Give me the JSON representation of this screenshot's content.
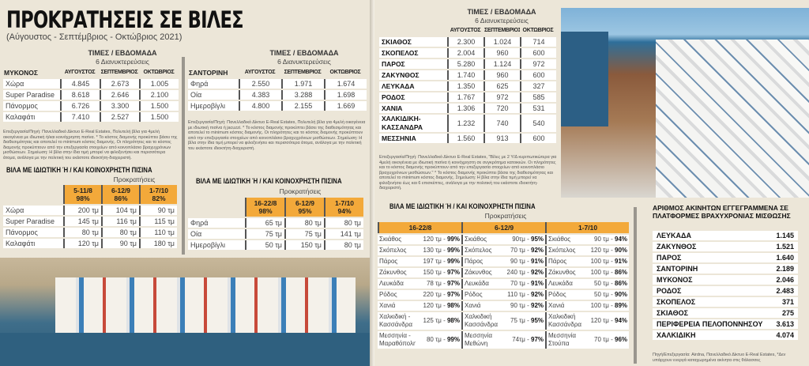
{
  "header": {
    "title": "ΠΡΟΚΡΑΤΗΣΕΙΣ ΣΕ ΒΙΛΕΣ",
    "subtitle": "(Αύγουστος - Σεπτέμβριος - Οκτώβριος 2021)"
  },
  "labels": {
    "prices_week": "ΤΙΜΕΣ / ΕΒΔΟΜΑΔΑ",
    "nights": "6 Διανυκτερεύσεις",
    "aug": "ΑΥΓΟΥΣΤΟΣ",
    "sep": "ΣΕΠΤΕΜΒΡΙΟΣ",
    "oct": "ΟΚΤΩΒΡΙΟΣ",
    "pool_title": "ΒΙΛΑ ΜΕ ΙΔΙΩΤΙΚΗ Ή / ΚΑΙ ΚΟΙΝΟΧΡΗΣΤΗ ΠΙΣΙΝΑ",
    "bookings": "Προκρατήσεις"
  },
  "mykonos": {
    "name": "ΜΥΚΟΝΟΣ",
    "rows": [
      [
        "Χώρα",
        "4.845",
        "2.673",
        "1.005"
      ],
      [
        "Super Paradise",
        "8.618",
        "2.646",
        "2.100"
      ],
      [
        "Πάνορμος",
        "6.726",
        "3.300",
        "1.500"
      ],
      [
        "Καλαφάτι",
        "7.410",
        "2.527",
        "1.500"
      ]
    ],
    "note": "Επεξεργασία/Πηγή: Πανελλαδικό Δίκτυο Ε-Real Estates, Πολυτελή βίλα για 4μελή οικογένεια με ιδιωτική ή/και κοινόχρηστη πισίνα. * Το κόστος διαμονής προκύπτει βάσει της διαθεσιμότητας και αποτελεί το minimum κόστος διαμονής. Οι πληρότητες και το κόστος διαμονής προκύπτουν από την επεξεργασία στοιχείων από κοινοπλάσιο βραχυχρόνιων μισθώσεων. Σημείωση: Η βίλα στην ίδια τιμή μπορεί να φιλοξενήσει και περισσότερα άτομα, ανάλογα με την πολιτική του εκάστοτε ιδιοκτήτη-διαχειριστή.",
    "pool": {
      "periods": [
        {
          "dates": "5-11/8",
          "pct": "98%"
        },
        {
          "dates": "6-12/9",
          "pct": "86%"
        },
        {
          "dates": "1-7/10",
          "pct": "82%"
        }
      ],
      "rows": [
        [
          "Χώρα",
          "200 τμ",
          "104 τμ",
          "90 τμ"
        ],
        [
          "Super Paradise",
          "145 τμ",
          "116 τμ",
          "115 τμ"
        ],
        [
          "Πάνορμος",
          "80 τμ",
          "80 τμ",
          "110 τμ"
        ],
        [
          "Καλαφάτι",
          "120 τμ",
          "90 τμ",
          "180 τμ"
        ]
      ]
    }
  },
  "santorini": {
    "name": "ΣΑΝΤΟΡΙΝΗ",
    "rows": [
      [
        "Φηρά",
        "2.550",
        "1.971",
        "1.674"
      ],
      [
        "Οία",
        "4.383",
        "3.288",
        "1.698"
      ],
      [
        "Ημεροβίγλι",
        "4.800",
        "2.155",
        "1.669"
      ]
    ],
    "note": "Επεξεργασία/Πηγή: Πανελλαδικό Δίκτυο Ε-Real Estates, Πολυτελή βίλα για 4μελή οικογένεια με ιδιωτική πισίνα ή jacuzzi. * Το κόστος διαμονής προκύπτει βάσει της διαθεσιμότητας και αποτελεί το minimum κόστος διαμονής. Οι πληρότητες και το κόστος διαμονής προκύπτουν από την επεξεργασία στοιχείων από κοινοπλάσιο βραχυχρόνιων μισθώσεων. Σημείωση: Η βίλα στην ίδια τιμή μπορεί να φιλοξενήσει και περισσότερα άτομα, ανάλογα με την πολιτική του εκάστοτε ιδιοκτήτη-διαχειριστή.",
    "pool": {
      "periods": [
        {
          "dates": "16-22/8",
          "pct": "98%"
        },
        {
          "dates": "6-12/9",
          "pct": "95%"
        },
        {
          "dates": "1-7/10",
          "pct": "94%"
        }
      ],
      "rows": [
        [
          "Φηρά",
          "65 τμ",
          "80 τμ",
          "80 τμ"
        ],
        [
          "Οία",
          "75 τμ",
          "75 τμ",
          "141 τμ"
        ],
        [
          "Ημεροβίγλι",
          "50 τμ",
          "150 τμ",
          "80 τμ"
        ]
      ]
    }
  },
  "regions": {
    "rows": [
      [
        "ΣΚΙΑΘΟΣ",
        "2.300",
        "1.024",
        "714"
      ],
      [
        "ΣΚΟΠΕΛΟΣ",
        "2.004",
        "960",
        "600"
      ],
      [
        "ΠΑΡΟΣ",
        "5.280",
        "1.124",
        "972"
      ],
      [
        "ΖΑΚΥΝΘΟΣ",
        "1.740",
        "960",
        "600"
      ],
      [
        "ΛΕΥΚΑΔΑ",
        "1.350",
        "625",
        "327"
      ],
      [
        "ΡΟΔΟΣ",
        "1.767",
        "972",
        "585"
      ],
      [
        "ΧΑΝΙΑ",
        "1.306",
        "720",
        "531"
      ],
      [
        "ΧΑΛΚΙΔΙΚΗ-ΚΑΣΣΑΝΔΡΑ",
        "1.232",
        "740",
        "540"
      ],
      [
        "ΜΕΣΣΗΝΙΑ",
        "1.560",
        "913",
        "600"
      ]
    ],
    "note": "Επεξεργασία/Πηγή: Πανελλαδικό Δίκτυο Ε-Real Estates, \"Βίλες με 2 Υ/Δ κυριπωτικώτερα για 4μελή οικογένεια με ιδιωτική πισίνα ή κοινόχρηστη σε συγκρότημα κατοικιών. Οι πληρότητες και το κόστος διαμονής προκύπτουν από την επεξεργασία στοιχείων από κοινοπλάσιο βραχυχρόνιων μισθώσεων.\" * Το κόστος διαμονής προκύπτει βάσει της διαθεσιμότητας και αποτελεί το minimum κόστος διαμονής. Σημείωση: Η βίλα στην ίδια τιμή μπορεί να φιλοξενήσει έως και 6 επισκέπτες, ανάλογα με την πολιτική του εκάστοτε ιδιοκτήτη-διαχειριστή.",
    "pool": {
      "periods": [
        "16-22/8",
        "6-12/9",
        "1-7/10"
      ],
      "rows": [
        [
          [
            "Σκιάθος",
            "120 τμ",
            "99%"
          ],
          [
            "Σκιάθος",
            "90τμ",
            "95%"
          ],
          [
            "Σκιάθος",
            "90 τμ",
            "94%"
          ]
        ],
        [
          [
            "Σκόπελος",
            "130 τμ",
            "99%"
          ],
          [
            "Σκόπελος",
            "70 τμ",
            "92%"
          ],
          [
            "Σκόπελος",
            "120 τμ",
            "90%"
          ]
        ],
        [
          [
            "Πάρος",
            "197 τμ",
            "99%"
          ],
          [
            "Πάρος",
            "90 τμ",
            "91%"
          ],
          [
            "Πάρος",
            "100 τμ",
            "91%"
          ]
        ],
        [
          [
            "Ζάκυνθος",
            "150 τμ",
            "97%"
          ],
          [
            "Ζάκυνθος",
            "240 τμ",
            "92%"
          ],
          [
            "Ζάκυνθος",
            "100 τμ",
            "86%"
          ]
        ],
        [
          [
            "Λευκάδα",
            "78 τμ",
            "97%"
          ],
          [
            "Λευκάδα",
            "70 τμ",
            "91%"
          ],
          [
            "Λευκάδα",
            "50 τμ",
            "86%"
          ]
        ],
        [
          [
            "Ρόδος",
            "220 τμ",
            "97%"
          ],
          [
            "Ρόδος",
            "110 τμ",
            "92%"
          ],
          [
            "Ρόδος",
            "50 τμ",
            "90%"
          ]
        ],
        [
          [
            "Χανιά",
            "120 τμ",
            "98%"
          ],
          [
            "Χανιά",
            "90 τμ",
            "92%"
          ],
          [
            "Χανιά",
            "100 τμ",
            "89%"
          ]
        ],
        [
          [
            "Χαλκιδική - Κασσάνδρα",
            "125 τμ",
            "98%"
          ],
          [
            "Χαλκιδική Κασσάνδρα",
            "75 τμ",
            "95%"
          ],
          [
            "Χαλκιδική Κασσάνδρα",
            "120 τμ",
            "94%"
          ]
        ],
        [
          [
            "Μεσσηνία - Μαραθόπολη",
            "80 τμ",
            "99%"
          ],
          [
            "Μεσσηνία Μεθώνη",
            "74τμ",
            "97%"
          ],
          [
            "Μεσσηνία Στούπα",
            "70 τμ",
            "96%"
          ]
        ]
      ]
    }
  },
  "listings": {
    "title": "ΑΡΙΘΜΟΣ ΑΚΙΝΗΤΩΝ ΕΓΓΕΓΡΑΜΜΕΝΑ ΣΕ ΠΛΑΤΦΟΡΜΕΣ ΒΡΑΧΥΧΡΟΝΙΑΣ ΜΙΣΘΩΣΗΣ",
    "rows": [
      [
        "ΛΕΥΚΑΔΑ",
        "1.145"
      ],
      [
        "ΖΑΚΥΝΘΟΣ",
        "1.521"
      ],
      [
        "ΠΑΡΟΣ",
        "1.640"
      ],
      [
        "ΣΑΝΤΟΡΙΝΗ",
        "2.189"
      ],
      [
        "ΜΥΚΟΝΟΣ",
        "2.046"
      ],
      [
        "ΡΟΔΟΣ",
        "2.483"
      ],
      [
        "ΣΚΟΠΕΛΟΣ",
        "371"
      ],
      [
        "ΣΚΙΑΘΟΣ",
        "275"
      ],
      [
        "ΠΕΡΙΦΕΡΕΙΑ ΠΕΛΟΠΟΝΝΗΣΟΥ",
        "3.613"
      ],
      [
        "ΧΑΛΚΙΔΙΚΗ",
        "4.074"
      ]
    ],
    "note": "Πηγή/Επεξεργασία: Airdna, Πανελλαδικό Δίκτυο E-Real Estates, *Δεν υπάρχουν ενεργά καταχωρημένα ακίνητα στις θάλασσες"
  },
  "colors": {
    "accent": "#f3a93a",
    "background": "#ece6d8"
  }
}
